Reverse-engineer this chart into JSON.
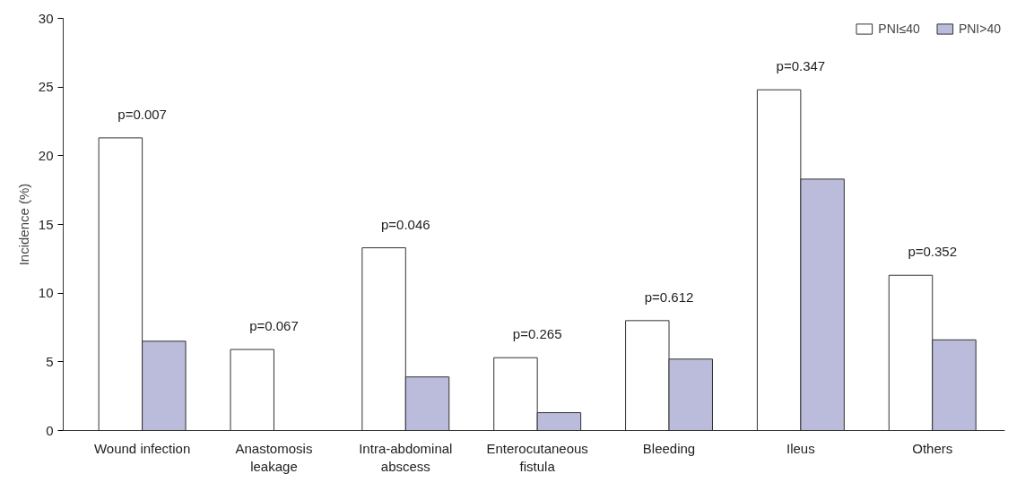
{
  "chart_data": {
    "type": "bar",
    "ylabel": "Incidence (%)",
    "categories": [
      "Wound infection",
      "Anastomosis\nleakage",
      "Intra-abdominal\nabscess",
      "Enterocutaneous\nfistula",
      "Bleeding",
      "Ileus",
      "Others"
    ],
    "series": [
      {
        "name": "PNI≤40",
        "color": "#ffffff",
        "values": [
          21.3,
          5.9,
          13.3,
          5.3,
          8.0,
          24.8,
          11.3
        ]
      },
      {
        "name": "PNI>40",
        "color": "#bbbbdb",
        "values": [
          6.5,
          0,
          3.9,
          1.3,
          5.2,
          18.3,
          6.6
        ]
      }
    ],
    "ylim": [
      0,
      30
    ],
    "yticks": [
      0,
      5,
      10,
      15,
      20,
      25,
      30
    ],
    "grid": false,
    "legend": "top right",
    "annotations": [
      "p=0.007",
      "p=0.067",
      "p=0.046",
      "p=0.265",
      "p=0.612",
      "p=0.347",
      "p=0.352"
    ]
  }
}
